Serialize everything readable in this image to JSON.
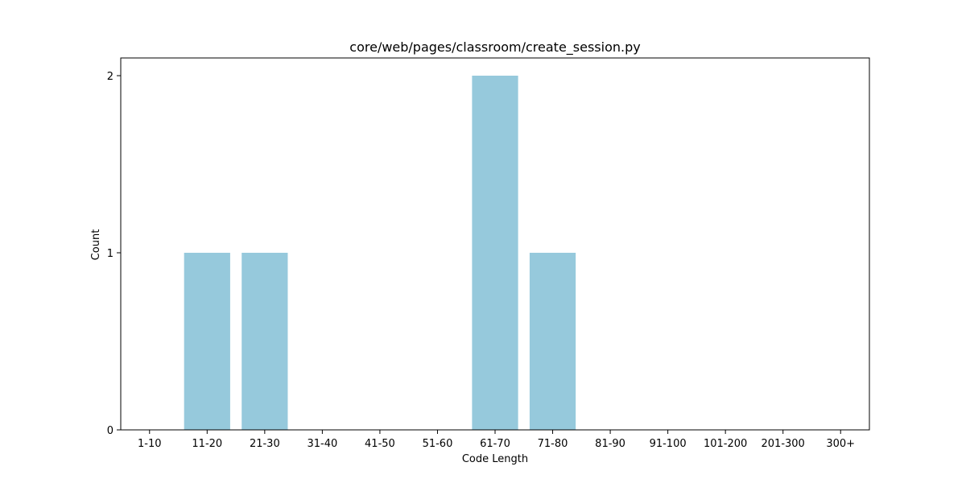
{
  "chart_data": {
    "type": "bar",
    "title": "core/web/pages/classroom/create_session.py",
    "xlabel": "Code Length",
    "ylabel": "Count",
    "categories": [
      "1-10",
      "11-20",
      "21-30",
      "31-40",
      "41-50",
      "51-60",
      "61-70",
      "71-80",
      "81-90",
      "91-100",
      "101-200",
      "201-300",
      "300+"
    ],
    "values": [
      0,
      1,
      1,
      0,
      0,
      0,
      2,
      1,
      0,
      0,
      0,
      0,
      0
    ],
    "yticks": [
      0,
      1,
      2
    ],
    "ylim": [
      0,
      2.1
    ],
    "grid": false,
    "legend": "none",
    "bar_color": "#96c9dc"
  }
}
